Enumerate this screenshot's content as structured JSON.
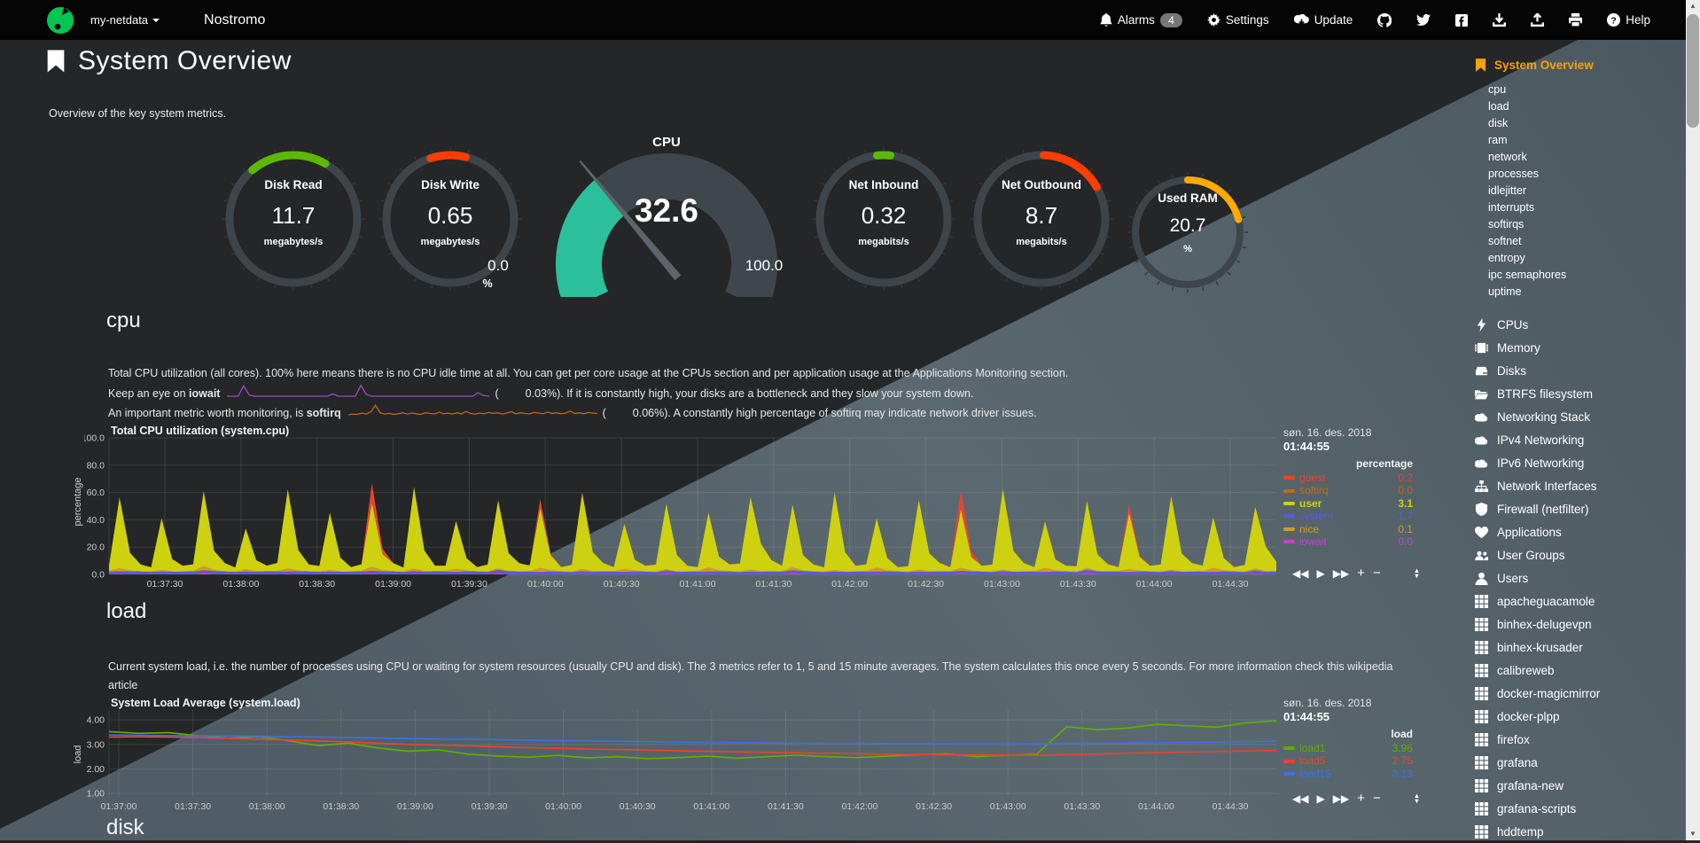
{
  "navbar": {
    "hostname": "my-netdata",
    "title": "Nostromo",
    "alarms": "Alarms",
    "alarms_count": "4",
    "settings": "Settings",
    "update": "Update",
    "help": "Help"
  },
  "page": {
    "title": "System Overview",
    "subtitle": "Overview of the key system metrics."
  },
  "gauges": [
    {
      "label": "Disk Read",
      "value": "11.7",
      "unit": "megabytes/s",
      "color": "#5cb802",
      "a0": -40,
      "a1": 30
    },
    {
      "label": "Disk Write",
      "value": "0.65",
      "unit": "megabytes/s",
      "color": "#ff3d02",
      "a0": -18,
      "a1": 14
    },
    {
      "label": "Net Inbound",
      "value": "0.32",
      "unit": "megabits/s",
      "color": "#5cb802",
      "a0": -6,
      "a1": 6
    },
    {
      "label": "Net Outbound",
      "value": "8.7",
      "unit": "megabits/s",
      "color": "#ff3d02",
      "a0": 2,
      "a1": 60
    },
    {
      "label": "Used RAM",
      "value": "20.7",
      "unit": "%",
      "color": "#ffa902",
      "a0": 0,
      "a1": 76
    }
  ],
  "cpu_gauge": {
    "title": "CPU",
    "value": "32.6",
    "min": "0.0",
    "max": "100.0",
    "unit": "%",
    "color": "#2cbf9c",
    "arc_start": -115,
    "arc_end": 115,
    "value_angle": -40
  },
  "cpu_section": {
    "heading": "cpu",
    "line1": "Total CPU utilization (all cores). 100% here means there is no CPU idle time at all. You can get per core usage at the CPUs section and per application usage at the Applications Monitoring section.",
    "line2_prefix": "Keep an eye on ",
    "line2_keyword": "iowait",
    "line2_open": "(",
    "line2_value": "0.03%",
    "line2_rest": "). If it is constantly high, your disks are a bottleneck and they slow your system down.",
    "line3_prefix": "An important metric worth monitoring, is ",
    "line3_keyword": "softirq",
    "line3_open": "(",
    "line3_value": "0.06%",
    "line3_rest": "). A constantly high percentage of softirq may indicate network driver issues."
  },
  "load_section": {
    "heading": "load",
    "desc": "Current system load, i.e. the number of processes using CPU or waiting for system resources (usually CPU and disk). The 3 metrics refer to 1, 5 and 15 minute averages. The system calculates this once every 5 seconds. For more information check this wikipedia article"
  },
  "disk_section": {
    "heading": "disk"
  },
  "chart_data": [
    {
      "id": "cpu",
      "type": "area-stacked",
      "title": "Total CPU utilization (system.cpu)",
      "ylabel": "percentage",
      "unit": "percentage",
      "date": "søn. 16. des. 2018",
      "time": "01:44:55",
      "ylim": [
        0,
        100
      ],
      "ytick_values": [
        100,
        80,
        60,
        40,
        20,
        0
      ],
      "ytick_labels": [
        "100.0",
        "80.0",
        "60.0",
        "40.0",
        "20.0",
        "0.0"
      ],
      "x_labels": [
        "01:37:30",
        "01:38:00",
        "01:38:30",
        "01:39:00",
        "01:39:30",
        "01:40:00",
        "01:40:30",
        "01:41:00",
        "01:41:30",
        "01:42:00",
        "01:42:30",
        "01:43:00",
        "01:43:30",
        "01:44:00",
        "01:44:30"
      ],
      "series": [
        {
          "name": "iowait",
          "color": "#b648cf",
          "repeat": [
            0,
            0.4,
            0,
            0,
            0,
            0,
            0,
            0,
            0,
            1.2,
            0.2,
            0,
            0,
            0,
            0,
            0,
            0,
            0.3,
            0,
            0,
            0,
            0,
            0,
            0,
            0,
            0.8,
            0,
            0
          ],
          "length": 112
        },
        {
          "name": "system",
          "color": "#575cdf",
          "repeat": [
            2,
            1.8,
            2.2,
            2,
            1.7,
            2.1,
            1.9,
            2
          ],
          "length": 112
        },
        {
          "name": "nice",
          "color": "#d29b24",
          "repeat": [
            0.4,
            2.2,
            0.6,
            0.3,
            0.5,
            1,
            0.4,
            0.3,
            0.4,
            3,
            0.8,
            0.4,
            0.3,
            1.5,
            0.5,
            0.4
          ],
          "length": 112
        },
        {
          "name": "user",
          "color": "#cdd10f",
          "values": [
            4,
            52,
            13,
            5,
            3,
            38,
            9,
            4,
            5,
            55,
            14,
            6,
            3,
            30,
            8,
            4,
            6,
            58,
            15,
            5,
            4,
            42,
            10,
            3,
            5,
            47,
            12,
            6,
            3,
            60,
            15,
            4,
            4,
            35,
            9,
            3,
            5,
            50,
            13,
            6,
            4,
            44,
            11,
            3,
            5,
            56,
            14,
            6,
            3,
            33,
            8,
            4,
            5,
            48,
            12,
            4,
            3,
            40,
            10,
            5,
            6,
            53,
            20,
            8,
            4,
            46,
            11,
            5,
            3,
            57,
            14,
            4,
            5,
            36,
            9,
            3,
            4,
            51,
            13,
            6,
            3,
            43,
            10,
            4,
            5,
            59,
            15,
            6,
            3,
            34,
            8,
            4,
            4,
            49,
            12,
            5,
            3,
            41,
            10,
            4,
            5,
            54,
            13,
            6,
            4,
            37,
            9,
            3,
            5,
            45,
            18,
            7
          ]
        },
        {
          "name": "softirq",
          "color": "#c66a0c",
          "repeat": [
            0.1,
            0.2,
            0.1,
            0.1
          ],
          "length": 112
        },
        {
          "name": "guest",
          "color": "#e9442d",
          "repeat": [
            0,
            0,
            0,
            0,
            0,
            0,
            0,
            0,
            0,
            0,
            0,
            0,
            0,
            0,
            0,
            0,
            0,
            0,
            0,
            0,
            0,
            0,
            0,
            0,
            0,
            14,
            4,
            0,
            0,
            0,
            0,
            0,
            0,
            0,
            0,
            0,
            0,
            0,
            0,
            0,
            0,
            6,
            1,
            0,
            0,
            0,
            0,
            0,
            0,
            0,
            0,
            0,
            0,
            0,
            0,
            0
          ],
          "length": 112
        }
      ],
      "legend_entries": [
        {
          "name": "guest",
          "value": "0.2",
          "color": "#e9442d",
          "bold": false
        },
        {
          "name": "softirq",
          "value": "0.0",
          "color": "#c66a0c",
          "bold": false
        },
        {
          "name": "user",
          "value": "3.1",
          "color": "#cdd10f",
          "bold": true
        },
        {
          "name": "system",
          "value": "1.7",
          "color": "#575cdf",
          "bold": false
        },
        {
          "name": "nice",
          "value": "0.1",
          "color": "#d29b24",
          "bold": false
        },
        {
          "name": "iowait",
          "value": "0.0",
          "color": "#b648cf",
          "bold": false
        }
      ]
    },
    {
      "id": "load",
      "type": "line",
      "title": "System Load Average (system.load)",
      "ylabel": "load",
      "unit": "load",
      "date": "søn. 16. des. 2018",
      "time": "01:44:55",
      "ylim": [
        0.86,
        4.4
      ],
      "ytick_values": [
        4,
        3,
        2,
        1
      ],
      "ytick_labels": [
        "4.00",
        "3.00",
        "2.00",
        "1.00"
      ],
      "x_labels": [
        "01:37:00",
        "01:37:30",
        "01:38:00",
        "01:38:30",
        "01:39:00",
        "01:39:30",
        "01:40:00",
        "01:40:30",
        "01:41:00",
        "01:41:30",
        "01:42:00",
        "01:42:30",
        "01:43:00",
        "01:43:30",
        "01:44:00",
        "01:44:30"
      ],
      "series": [
        {
          "name": "load1",
          "color": "#61ad01",
          "values": [
            3.52,
            3.45,
            3.48,
            3.35,
            3.25,
            3.32,
            3.15,
            2.95,
            3.05,
            2.85,
            2.72,
            2.78,
            2.6,
            2.52,
            2.48,
            2.55,
            2.45,
            2.5,
            2.42,
            2.46,
            2.52,
            2.44,
            2.5,
            2.56,
            2.5,
            2.46,
            2.52,
            2.58,
            2.62,
            2.5,
            2.56,
            2.6,
            3.72,
            3.6,
            3.66,
            3.82,
            3.76,
            3.7,
            3.88,
            3.96
          ]
        },
        {
          "name": "load5",
          "color": "#e9442d",
          "values": [
            3.3,
            3.31,
            3.3,
            3.28,
            3.25,
            3.21,
            3.18,
            3.14,
            3.1,
            3.05,
            3.0,
            2.97,
            2.94,
            2.9,
            2.87,
            2.84,
            2.81,
            2.79,
            2.77,
            2.74,
            2.72,
            2.7,
            2.68,
            2.66,
            2.64,
            2.62,
            2.6,
            2.59,
            2.58,
            2.57,
            2.56,
            2.55,
            2.58,
            2.61,
            2.64,
            2.66,
            2.69,
            2.71,
            2.73,
            2.75
          ]
        },
        {
          "name": "load15",
          "color": "#3e71d9",
          "values": [
            3.38,
            3.37,
            3.36,
            3.35,
            3.34,
            3.33,
            3.31,
            3.3,
            3.28,
            3.26,
            3.24,
            3.22,
            3.21,
            3.19,
            3.17,
            3.15,
            3.14,
            3.12,
            3.11,
            3.09,
            3.08,
            3.07,
            3.06,
            3.05,
            3.04,
            3.04,
            3.03,
            3.03,
            3.02,
            3.02,
            3.02,
            3.01,
            3.04,
            3.05,
            3.06,
            3.07,
            3.08,
            3.09,
            3.11,
            3.13
          ]
        }
      ],
      "legend_entries": [
        {
          "name": "load1",
          "value": "3.96",
          "color": "#61ad01",
          "bold": false
        },
        {
          "name": "load5",
          "value": "2.75",
          "color": "#e9442d",
          "bold": false
        },
        {
          "name": "load15",
          "value": "3.13",
          "color": "#3e71d9",
          "bold": false
        }
      ]
    },
    {
      "id": "spark_iowait",
      "type": "spark",
      "color": "#a04ac0",
      "max": 2,
      "values": [
        0,
        0,
        0,
        1.8,
        0.2,
        0,
        0,
        0,
        0,
        0,
        0,
        0,
        0,
        0,
        0,
        0,
        0,
        0,
        0,
        0.4,
        0,
        0,
        0,
        0,
        1.9,
        0.3,
        0,
        0,
        0,
        0,
        0,
        0,
        0,
        0,
        0,
        0,
        0,
        0,
        0,
        0,
        0,
        0,
        0,
        0,
        0,
        0.6,
        0.1,
        0
      ]
    },
    {
      "id": "spark_softirq",
      "type": "spark",
      "color": "#bd6a16",
      "max": 3.5,
      "values": [
        0.3,
        0.5,
        0.4,
        0.8,
        0.5,
        1.2,
        3.2,
        0.9,
        0.5,
        0.7,
        0.4,
        0.6,
        0.9,
        0.5,
        0.8,
        0.6,
        0.4,
        0.9,
        0.7,
        0.5,
        1.1,
        0.6,
        0.8,
        0.5,
        0.9,
        0.6,
        1.3,
        0.7,
        0.5,
        0.8,
        0.6,
        1.0,
        0.7,
        0.9,
        0.5,
        0.8,
        1.2,
        0.6,
        0.9,
        0.7,
        0.5,
        1.0,
        0.8,
        0.6,
        1.1,
        0.7,
        0.9,
        0.6,
        0.8,
        1.4,
        0.7,
        0.9,
        0.6,
        1.0,
        0.8,
        0.7
      ]
    }
  ],
  "sidebar": {
    "active_label": "System Overview",
    "active_color": "#f8a200",
    "sub_items": [
      "cpu",
      "load",
      "disk",
      "ram",
      "network",
      "processes",
      "idlejitter",
      "interrupts",
      "softirqs",
      "softnet",
      "entropy",
      "ipc semaphores",
      "uptime"
    ],
    "sections": [
      {
        "icon": "bolt",
        "label": "CPUs"
      },
      {
        "icon": "memory",
        "label": "Memory"
      },
      {
        "icon": "hdd",
        "label": "Disks"
      },
      {
        "icon": "folder",
        "label": "BTRFS filesystem"
      },
      {
        "icon": "cloud",
        "label": "Networking Stack"
      },
      {
        "icon": "cloud",
        "label": "IPv4 Networking"
      },
      {
        "icon": "cloud",
        "label": "IPv6 Networking"
      },
      {
        "icon": "sitemap",
        "label": "Network Interfaces"
      },
      {
        "icon": "shield",
        "label": "Firewall (netfilter)"
      },
      {
        "icon": "heart",
        "label": "Applications"
      },
      {
        "icon": "users",
        "label": "User Groups"
      },
      {
        "icon": "user",
        "label": "Users"
      },
      {
        "icon": "grid",
        "label": "apacheguacamole"
      },
      {
        "icon": "grid",
        "label": "binhex-delugevpn"
      },
      {
        "icon": "grid",
        "label": "binhex-krusader"
      },
      {
        "icon": "grid",
        "label": "calibreweb"
      },
      {
        "icon": "grid",
        "label": "docker-magicmirror"
      },
      {
        "icon": "grid",
        "label": "docker-plpp"
      },
      {
        "icon": "grid",
        "label": "firefox"
      },
      {
        "icon": "grid",
        "label": "grafana"
      },
      {
        "icon": "grid",
        "label": "grafana-new"
      },
      {
        "icon": "grid",
        "label": "grafana-scripts"
      },
      {
        "icon": "grid",
        "label": "hddtemp"
      }
    ]
  },
  "colors": {
    "accent_orange": "#f8a200",
    "bg_dark": "#242628",
    "bg_light": "#57646c",
    "navbar": "#050505"
  }
}
